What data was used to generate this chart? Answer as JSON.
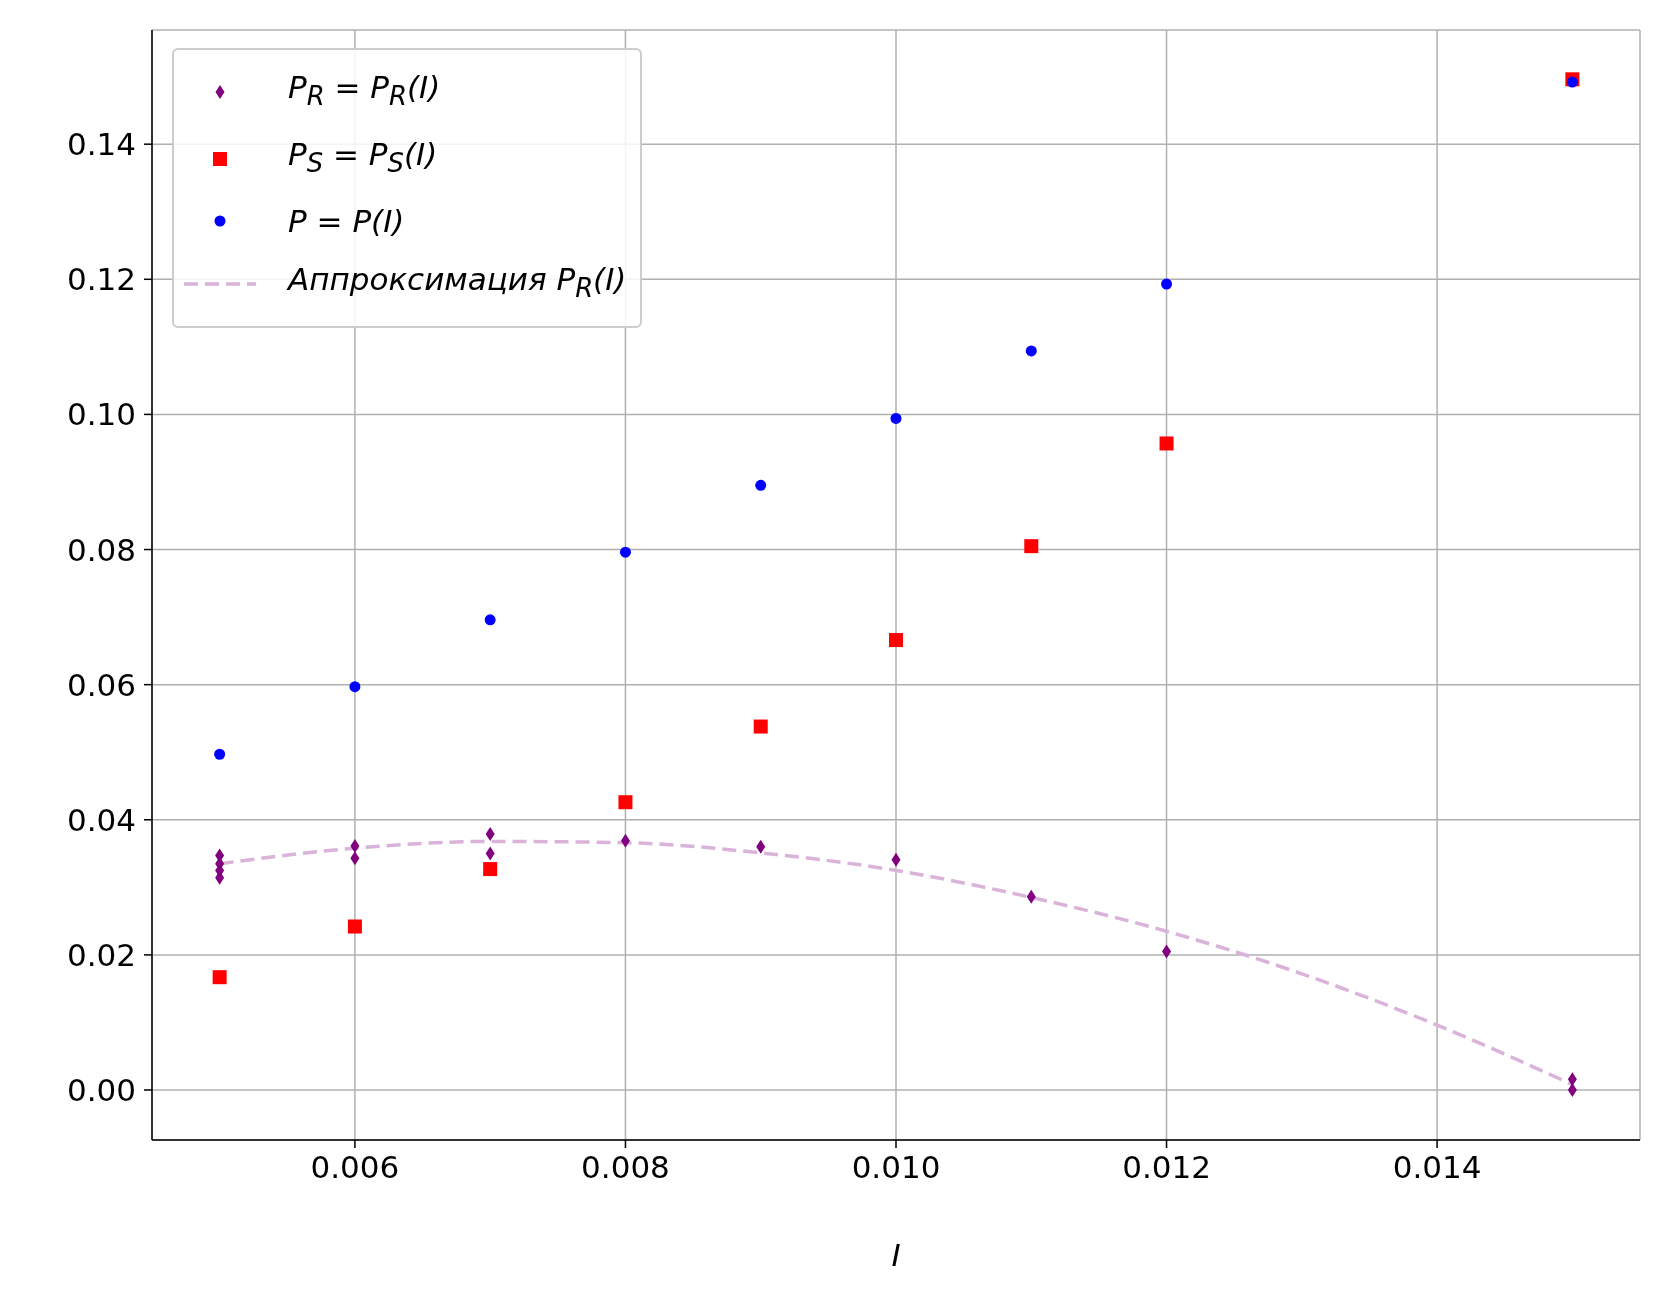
{
  "chart_data": {
    "type": "scatter",
    "xlabel": "I",
    "legend": "top left",
    "grid": true,
    "xlim": [
      0.0045,
      0.0155
    ],
    "ylim": [
      -0.0074,
      0.1569
    ],
    "xticks": [
      0.006,
      0.008,
      {
        "value": 0.01,
        "label": "0.010"
      },
      0.012,
      0.014
    ],
    "yticks": [
      {
        "value": 0,
        "label": "0.00"
      },
      {
        "value": 0.02,
        "label": "0.02"
      },
      {
        "value": 0.04,
        "label": "0.04"
      },
      {
        "value": 0.06,
        "label": "0.06"
      },
      {
        "value": 0.08,
        "label": "0.08"
      },
      {
        "value": 0.1,
        "label": "0.10"
      },
      {
        "value": 0.12,
        "label": "0.12"
      },
      {
        "value": 0.14,
        "label": "0.14"
      }
    ],
    "series": [
      {
        "name": "P$_{R}$ = P$_{R}$(I)",
        "marker": "diamond",
        "color": "#800080",
        "x": [
          0.005,
          0.005,
          0.005,
          0.005,
          0.006,
          0.006,
          0.007,
          0.007,
          0.008,
          0.009,
          0.01,
          0.011,
          0.012,
          0.015,
          0.015
        ],
        "values": [
          0.0347,
          0.0335,
          0.0325,
          0.0314,
          0.0361,
          0.0343,
          0.0379,
          0.035,
          0.0369,
          0.036,
          0.0341,
          0.0286,
          0.0205,
          0.0016,
          0.0
        ]
      },
      {
        "name": "P$_{S}$ = P$_{S}$(I)",
        "marker": "square",
        "color": "#ff0000",
        "x": [
          0.005,
          0.006,
          0.007,
          0.008,
          0.009,
          0.01,
          0.011,
          0.012,
          0.015
        ],
        "values": [
          0.0167,
          0.0242,
          0.0327,
          0.0426,
          0.0538,
          0.0666,
          0.0805,
          0.0957,
          0.1496
        ]
      },
      {
        "name": "P = P(I)",
        "marker": "circle",
        "color": "#0000ff",
        "x": [
          0.005,
          0.006,
          0.007,
          0.008,
          0.009,
          0.01,
          0.011,
          0.012,
          0.015
        ],
        "values": [
          0.0497,
          0.0597,
          0.0696,
          0.0796,
          0.0895,
          0.0994,
          0.1094,
          0.1193,
          0.1492
        ]
      },
      {
        "name": "Аппроксимация P$_{R}$(I)",
        "type": "line",
        "line_style": "dashed",
        "color": "#d9b3d9",
        "x": [
          0.005,
          0.006,
          0.007,
          0.008,
          0.009,
          0.01,
          0.011,
          0.012,
          0.013,
          0.014,
          0.015
        ],
        "values": [
          0.0335,
          0.0358,
          0.0368,
          0.0366,
          0.0351,
          0.0325,
          0.0285,
          0.0235,
          0.0172,
          0.0096,
          0.0008
        ]
      }
    ]
  }
}
